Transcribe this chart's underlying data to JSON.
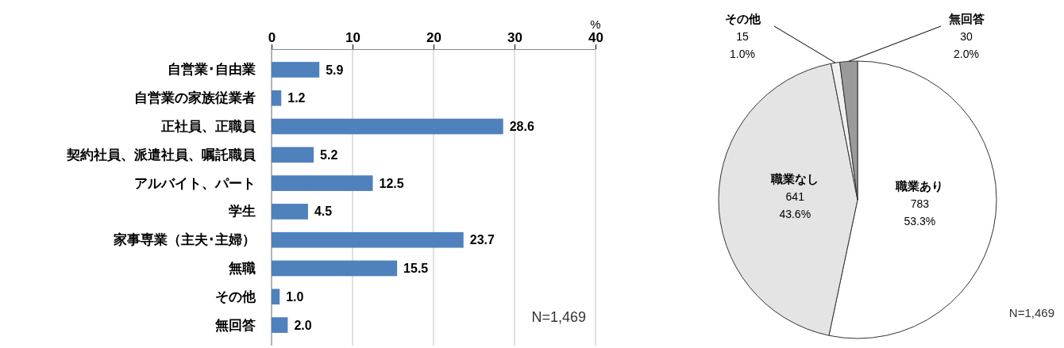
{
  "chart_data": [
    {
      "type": "bar",
      "orientation": "horizontal",
      "categories": [
        "自営業･自由業",
        "自営業の家族従業者",
        "正社員、正職員",
        "契約社員、派遣社員、嘱託職員",
        "アルバイト、パート",
        "学生",
        "家事専業（主夫･主婦）",
        "無職",
        "その他",
        "無回答"
      ],
      "values": [
        5.9,
        1.2,
        28.6,
        5.2,
        12.5,
        4.5,
        23.7,
        15.5,
        1.0,
        2.0
      ],
      "value_labels": [
        "5.9",
        "1.2",
        "28.6",
        "5.2",
        "12.5",
        "4.5",
        "23.7",
        "15.5",
        "1.0",
        "2.0"
      ],
      "color": "#4f81bd",
      "xlim": [
        0,
        40
      ],
      "xticks": [
        0,
        10,
        20,
        30,
        40
      ],
      "xlabel": "%",
      "grid": "x",
      "annotations": [
        "N=1,469"
      ]
    },
    {
      "type": "pie",
      "categories": [
        "職業あり",
        "職業なし",
        "その他",
        "無回答"
      ],
      "values": [
        783,
        641,
        15,
        30
      ],
      "value_labels": [
        "783\n53.3%",
        "641\n43.6%",
        "15\n1.0%",
        "30\n2.0%"
      ],
      "colors": [
        "#ffffff",
        "#e4e4e4",
        "#f0f0f0",
        "#9a9a9a"
      ],
      "annotations": [
        "N=1,469"
      ]
    }
  ]
}
